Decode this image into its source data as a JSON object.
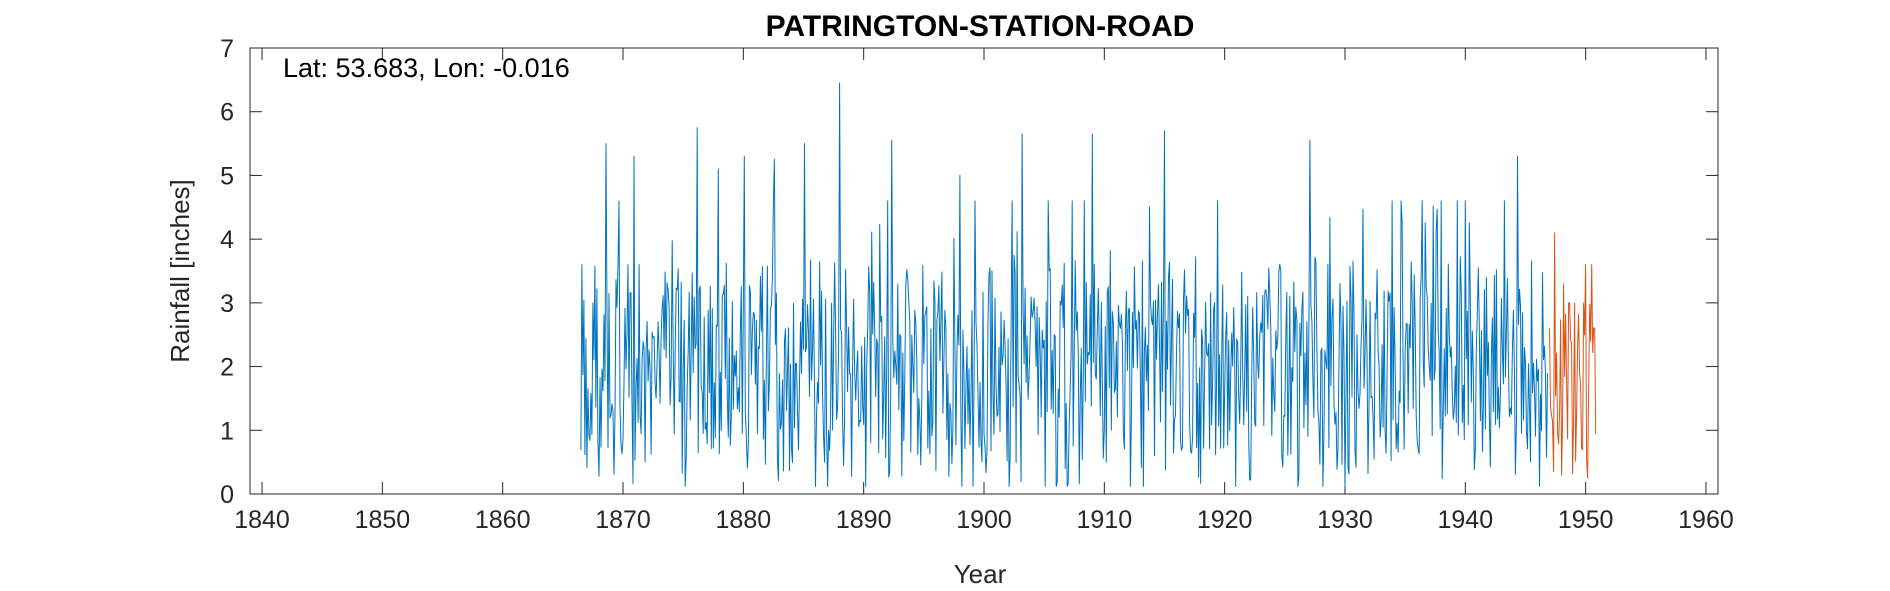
{
  "chart_data": {
    "type": "line",
    "title": "PATRINGTON-STATION-ROAD",
    "annotation": "Lat: 53.683, Lon: -0.016",
    "xlabel": "Year",
    "ylabel": "Rainfall [inches]",
    "xlim": [
      1839,
      1961
    ],
    "ylim": [
      0,
      7
    ],
    "xticks": [
      1840,
      1850,
      1860,
      1870,
      1880,
      1890,
      1900,
      1910,
      1920,
      1930,
      1940,
      1950,
      1960
    ],
    "yticks": [
      0,
      1,
      2,
      3,
      4,
      5,
      6,
      7
    ],
    "grid": false,
    "box": true,
    "series": [
      {
        "color": "#0072BD",
        "x_start": 1866.5,
        "x_end": 1946.9,
        "step": "monthly",
        "values_approx": "monthly rainfall fluctuating mainly 0.5–4 inches, peaks near 5.6 (1876, 1903, 1909, 1915, 1927), max ~6.4 around 1888, min ~0.1"
      },
      {
        "color": "#D95319",
        "x_start": 1947.0,
        "x_end": 1950.9,
        "step": "monthly",
        "values_approx": "monthly rainfall ~0.3–4.1 inches"
      }
    ]
  }
}
